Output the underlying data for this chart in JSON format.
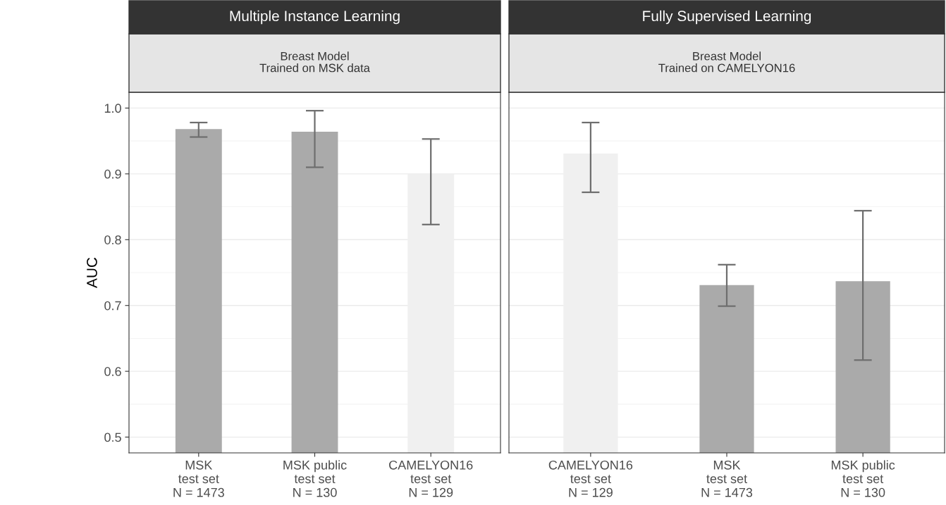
{
  "chart_data": [
    {
      "type": "bar",
      "title": "Multiple Instance Learning",
      "subtitle": "Breast Model\nTrained on MSK data",
      "ylabel": "AUC",
      "categories": [
        "MSK\ntest set\nN = 1473",
        "MSK public\ntest set\nN = 130",
        "CAMELYON16\ntest set\nN = 129"
      ],
      "values": [
        0.968,
        0.964,
        0.9
      ],
      "colors": [
        "#aaaaaa",
        "#aaaaaa",
        "#f0f0f0"
      ],
      "errors": [
        [
          0.956,
          0.978
        ],
        [
          0.91,
          0.996
        ],
        [
          0.823,
          0.953
        ]
      ],
      "ylim": [
        0.476,
        1.024
      ],
      "yticks": [
        0.5,
        0.6,
        0.7,
        0.8,
        0.9,
        {
          "value": 1,
          "label": "1.0"
        }
      ],
      "grid": "y"
    },
    {
      "type": "bar",
      "title": "Fully Supervised Learning",
      "subtitle": "Breast Model\nTrained on CAMELYON16",
      "categories": [
        "CAMELYON16\ntest set\nN = 129",
        "MSK\ntest set\nN = 1473",
        "MSK public\ntest set\nN = 130"
      ],
      "values": [
        0.931,
        0.731,
        0.737
      ],
      "colors": [
        "#f0f0f0",
        "#aaaaaa",
        "#aaaaaa"
      ],
      "errors": [
        [
          0.872,
          0.978
        ],
        [
          0.699,
          0.762
        ],
        [
          0.617,
          0.844
        ]
      ],
      "ylim": [
        0.476,
        1.024
      ],
      "yticks": [
        {
          "value": 0.5,
          "label": null
        },
        {
          "value": 0.6,
          "label": null
        },
        {
          "value": 0.7,
          "label": null
        },
        {
          "value": 0.8,
          "label": null
        },
        {
          "value": 0.9,
          "label": null
        },
        {
          "value": 1,
          "label": null
        }
      ],
      "grid": "y",
      "tick_labels": "x"
    }
  ]
}
